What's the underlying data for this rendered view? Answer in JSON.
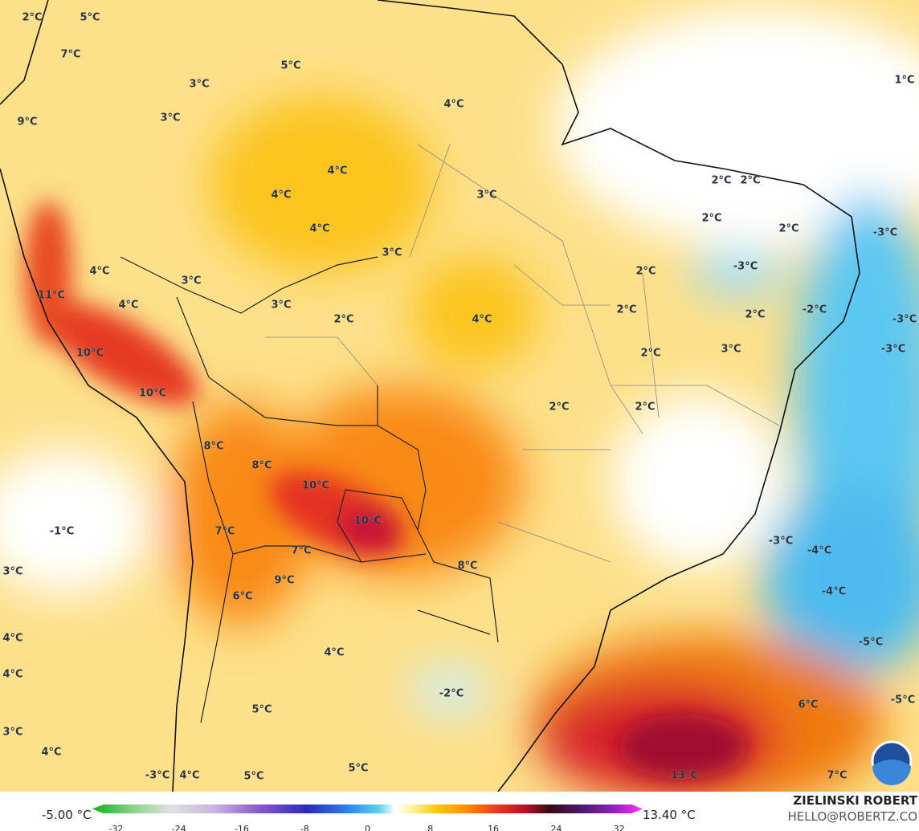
{
  "labels": [
    "2°C",
    "5°C",
    "7°C",
    "5°C",
    "3°C",
    "3°C",
    "9°C",
    "4°C",
    "4°C",
    "4°C",
    "3°C",
    "4°C",
    "3°C",
    "4°C",
    "3°C",
    "4°C",
    "3°C",
    "11°C",
    "2°C",
    "4°C",
    "10°C",
    "10°C",
    "2°C",
    "2°C",
    "8°C",
    "8°C",
    "10°C",
    "10°C",
    "-1°C",
    "7°C",
    "7°C",
    "8°C",
    "9°C",
    "3°C",
    "6°C",
    "4°C",
    "4°C",
    "4°C",
    "-2°C",
    "5°C",
    "3°C",
    "4°C",
    "5°C",
    "-3°C",
    "4°C",
    "5°C",
    "13°C",
    "7°C",
    "6°C",
    "-5°C",
    "-5°C",
    "-4°C",
    "-3°C",
    "-4°C",
    "1°C",
    "2°C",
    "2°C",
    "2°C",
    "2°C",
    "-3°C",
    "-3°C",
    "2°C",
    "2°C",
    "2°C",
    "-2°C",
    "-3°C",
    "-3°C",
    "3°C",
    "2°C"
  ],
  "colorbar": {
    "min_label": "-5.00 °C",
    "max_label": "13.40 °C",
    "range": [
      -35,
      35
    ],
    "ticks": [
      -32,
      -24,
      -16,
      -8,
      0,
      8,
      16,
      24,
      32
    ]
  },
  "credit": {
    "name": "ZIELINSKI ROBERT",
    "contact": "HELLO@ROBERTZ.CO"
  }
}
